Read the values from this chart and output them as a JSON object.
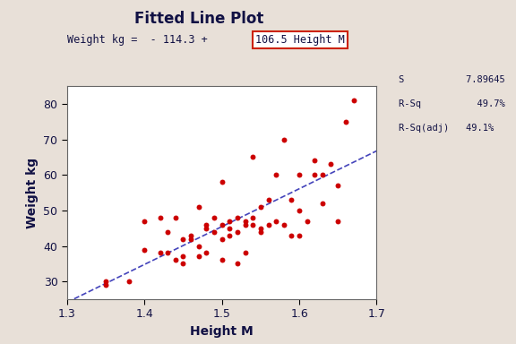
{
  "title": "Fitted Line Plot",
  "equation_prefix": "Weight kg =  - 114.3 + ",
  "equation_boxed": "106.5 Height M",
  "xlabel": "Height M",
  "ylabel": "Weight kg",
  "xlim": [
    1.3,
    1.7
  ],
  "ylim": [
    25,
    85
  ],
  "xticks": [
    1.3,
    1.4,
    1.5,
    1.6,
    1.7
  ],
  "yticks": [
    30,
    40,
    50,
    60,
    70,
    80
  ],
  "intercept": -114.3,
  "slope": 106.5,
  "bg_color": "#e8e0d8",
  "plot_bg": "#ffffff",
  "line_color": "#4444bb",
  "dot_color": "#cc0000",
  "stats_S": "7.89645",
  "stats_Rsq": "49.7%",
  "stats_Rsqadj": "49.1%",
  "scatter_x": [
    1.35,
    1.35,
    1.38,
    1.4,
    1.4,
    1.42,
    1.42,
    1.43,
    1.43,
    1.44,
    1.44,
    1.45,
    1.45,
    1.45,
    1.46,
    1.46,
    1.47,
    1.47,
    1.47,
    1.48,
    1.48,
    1.48,
    1.49,
    1.49,
    1.5,
    1.5,
    1.5,
    1.5,
    1.51,
    1.51,
    1.51,
    1.52,
    1.52,
    1.52,
    1.53,
    1.53,
    1.53,
    1.54,
    1.54,
    1.54,
    1.55,
    1.55,
    1.55,
    1.56,
    1.56,
    1.57,
    1.57,
    1.58,
    1.58,
    1.59,
    1.59,
    1.6,
    1.6,
    1.6,
    1.61,
    1.62,
    1.62,
    1.63,
    1.63,
    1.64,
    1.65,
    1.65,
    1.66,
    1.67
  ],
  "scatter_y": [
    30,
    29,
    30,
    39,
    47,
    38,
    48,
    44,
    38,
    36,
    48,
    42,
    37,
    35,
    43,
    42,
    37,
    51,
    40,
    46,
    45,
    38,
    48,
    44,
    42,
    46,
    36,
    58,
    47,
    45,
    43,
    44,
    48,
    35,
    46,
    47,
    38,
    46,
    48,
    65,
    51,
    44,
    45,
    53,
    46,
    47,
    60,
    46,
    70,
    53,
    43,
    60,
    50,
    43,
    47,
    60,
    64,
    60,
    52,
    63,
    47,
    57,
    75,
    81
  ]
}
